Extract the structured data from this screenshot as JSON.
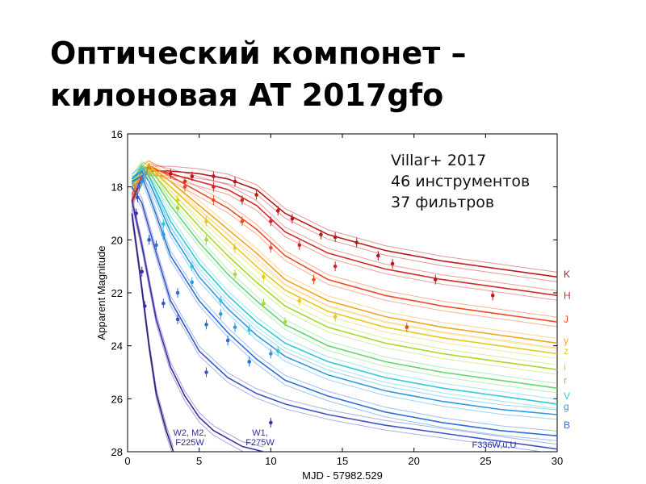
{
  "slide": {
    "title_line1": "Оптический компонет –",
    "title_line2": "килоновая AT 2017gfo"
  },
  "chart_data": {
    "type": "line",
    "xlabel": "MJD - 57982.529",
    "ylabel": "Apparent Magnitude",
    "xlim": [
      0,
      30
    ],
    "ylim": [
      28,
      16
    ],
    "y_inverted": true,
    "xticks": [
      0,
      5,
      10,
      15,
      20,
      25,
      30
    ],
    "yticks": [
      16,
      18,
      20,
      22,
      24,
      26,
      28
    ],
    "grid": false,
    "annotation_lines": [
      "Villar+ 2017",
      "46 инструментов",
      "37 фильтров"
    ],
    "inline_labels": [
      "W2, M2,\nF225W",
      "W1,\nF275W",
      "F336W,u,U"
    ],
    "series": [
      {
        "name": "K",
        "color": "#b81a1a",
        "x": [
          0.3,
          1,
          1.5,
          3,
          5,
          7,
          9,
          11,
          14,
          18,
          22,
          26,
          30
        ],
        "values": [
          18.6,
          17.7,
          17.4,
          17.4,
          17.5,
          17.7,
          18.1,
          19.0,
          19.8,
          20.4,
          20.8,
          21.1,
          21.4
        ]
      },
      {
        "name": "H",
        "color": "#d42727",
        "x": [
          0.3,
          1,
          1.5,
          3,
          5,
          7,
          9,
          11,
          14,
          18,
          22,
          26,
          30
        ],
        "values": [
          18.5,
          17.6,
          17.3,
          17.5,
          17.8,
          18.1,
          18.7,
          19.7,
          20.5,
          21.1,
          21.5,
          21.8,
          22.1
        ]
      },
      {
        "name": "J",
        "color": "#f04a22",
        "x": [
          0.3,
          1,
          1.5,
          3,
          5,
          7,
          9,
          11,
          14,
          18,
          22,
          26,
          30
        ],
        "values": [
          18.3,
          17.4,
          17.2,
          17.6,
          18.2,
          18.8,
          19.6,
          20.6,
          21.5,
          22.1,
          22.5,
          22.8,
          23.1
        ]
      },
      {
        "name": "y",
        "color": "#f5a31c",
        "x": [
          0.3,
          1,
          1.5,
          3,
          5,
          7,
          9,
          11,
          14,
          18,
          22,
          26,
          30
        ],
        "values": [
          18.1,
          17.3,
          17.2,
          17.8,
          18.7,
          19.6,
          20.5,
          21.5,
          22.3,
          22.9,
          23.3,
          23.6,
          23.9
        ]
      },
      {
        "name": "z",
        "color": "#e8c81a",
        "x": [
          0.3,
          1,
          1.5,
          3,
          5,
          7,
          9,
          11,
          14,
          18,
          22,
          26,
          30
        ],
        "values": [
          18.0,
          17.3,
          17.2,
          18.0,
          19.0,
          20.0,
          21.0,
          21.9,
          22.7,
          23.3,
          23.7,
          24.0,
          24.3
        ]
      },
      {
        "name": "i",
        "color": "#a8d829",
        "x": [
          0.3,
          1,
          1.5,
          3,
          5,
          7,
          9,
          11,
          14,
          18,
          22,
          26,
          30
        ],
        "values": [
          17.9,
          17.3,
          17.3,
          18.3,
          19.5,
          20.6,
          21.6,
          22.5,
          23.3,
          23.9,
          24.3,
          24.6,
          24.9
        ]
      },
      {
        "name": "r",
        "color": "#5fd870",
        "x": [
          0.3,
          1,
          1.5,
          3,
          5,
          7,
          9,
          11,
          14,
          18,
          22,
          26,
          30
        ],
        "values": [
          17.8,
          17.2,
          17.4,
          18.7,
          20.1,
          21.3,
          22.3,
          23.2,
          24.0,
          24.6,
          25.0,
          25.3,
          25.6
        ]
      },
      {
        "name": "V",
        "color": "#2fc8d8",
        "x": [
          0.3,
          1,
          1.5,
          3,
          5,
          7,
          9,
          11,
          14,
          18,
          22,
          26,
          30
        ],
        "values": [
          17.7,
          17.3,
          17.6,
          19.3,
          20.9,
          22.1,
          23.1,
          23.9,
          24.6,
          25.2,
          25.6,
          25.9,
          26.2
        ]
      },
      {
        "name": "g",
        "color": "#2a9be0",
        "x": [
          0.3,
          1,
          1.5,
          3,
          5,
          7,
          9,
          11,
          14,
          18,
          22,
          26,
          30
        ],
        "values": [
          17.7,
          17.4,
          17.8,
          19.7,
          21.4,
          22.6,
          23.6,
          24.4,
          25.1,
          25.7,
          26.1,
          26.4,
          26.6
        ]
      },
      {
        "name": "B",
        "color": "#2a6fd6",
        "x": [
          0.3,
          1,
          1.5,
          3,
          5,
          7,
          9,
          11,
          14,
          18,
          22,
          26,
          30
        ],
        "values": [
          17.8,
          17.6,
          18.3,
          20.6,
          22.3,
          23.5,
          24.5,
          25.3,
          25.9,
          26.5,
          26.9,
          27.2,
          27.4
        ]
      },
      {
        "name": "F336W,u,U",
        "color": "#3a55c8",
        "x": [
          0.3,
          1,
          2,
          3,
          5,
          7,
          9,
          11,
          14,
          18,
          22,
          26,
          30
        ],
        "values": [
          18.0,
          18.6,
          20.5,
          22.3,
          24.2,
          25.2,
          25.8,
          26.2,
          26.6,
          27.0,
          27.3,
          27.6,
          27.9
        ]
      },
      {
        "name": "W1, F275W",
        "color": "#3a2fa8",
        "x": [
          0.3,
          1,
          2,
          3,
          4,
          5,
          6,
          7,
          8,
          9.5
        ],
        "values": [
          18.5,
          20.2,
          23.0,
          24.8,
          25.9,
          26.7,
          27.2,
          27.5,
          27.8,
          28.0
        ]
      },
      {
        "name": "W2, M2, F225W",
        "color": "#2a1f80",
        "x": [
          0.3,
          0.8,
          1.5,
          2,
          2.7,
          3.2
        ],
        "values": [
          19.0,
          21.0,
          24.0,
          25.8,
          27.2,
          28.0
        ]
      }
    ],
    "observations": [
      {
        "band": "K",
        "points": [
          [
            1.5,
            17.4
          ],
          [
            3,
            17.5
          ],
          [
            4.5,
            17.6
          ],
          [
            6,
            17.6
          ],
          [
            7.5,
            17.8
          ],
          [
            9,
            18.3
          ],
          [
            10.5,
            18.9
          ],
          [
            11.5,
            19.2
          ],
          [
            13.5,
            19.8
          ],
          [
            14.5,
            19.9
          ],
          [
            16,
            20.1
          ],
          [
            17.5,
            20.6
          ],
          [
            18.5,
            20.9
          ],
          [
            21.5,
            21.5
          ],
          [
            25.5,
            22.1
          ]
        ]
      },
      {
        "name": "H",
        "band": "H",
        "points": [
          [
            1.5,
            17.5
          ],
          [
            4,
            17.8
          ],
          [
            6,
            18.0
          ],
          [
            8,
            18.5
          ],
          [
            10,
            19.3
          ],
          [
            12,
            20.2
          ],
          [
            14.5,
            21.0
          ]
        ]
      },
      {
        "band": "J",
        "points": [
          [
            1.5,
            17.3
          ],
          [
            4,
            18.0
          ],
          [
            6,
            18.5
          ],
          [
            8,
            19.3
          ],
          [
            10,
            20.3
          ],
          [
            13,
            21.5
          ],
          [
            19.5,
            23.3
          ]
        ]
      },
      {
        "band": "z",
        "points": [
          [
            1.5,
            17.4
          ],
          [
            3.5,
            18.5
          ],
          [
            5.5,
            19.3
          ],
          [
            7.5,
            20.3
          ],
          [
            9.5,
            21.4
          ],
          [
            12,
            22.3
          ],
          [
            14.5,
            22.9
          ]
        ]
      },
      {
        "band": "i",
        "points": [
          [
            1.5,
            17.5
          ],
          [
            3.5,
            18.8
          ],
          [
            5.5,
            20.0
          ],
          [
            7.5,
            21.3
          ],
          [
            9.5,
            22.4
          ],
          [
            11,
            23.1
          ]
        ]
      },
      {
        "band": "V",
        "points": [
          [
            1.2,
            17.6
          ],
          [
            2.5,
            19.4
          ],
          [
            4.5,
            21.0
          ],
          [
            6.5,
            22.3
          ],
          [
            8.5,
            23.4
          ],
          [
            10.5,
            24.2
          ]
        ]
      },
      {
        "band": "g",
        "points": [
          [
            1.0,
            17.8
          ],
          [
            2.5,
            19.8
          ],
          [
            4.5,
            21.6
          ],
          [
            6.5,
            22.8
          ],
          [
            7.5,
            23.3
          ],
          [
            10,
            24.3
          ]
        ]
      },
      {
        "band": "B",
        "points": [
          [
            0.8,
            18.0
          ],
          [
            2.0,
            20.2
          ],
          [
            3.5,
            22.0
          ],
          [
            5.5,
            23.2
          ],
          [
            7.0,
            23.8
          ],
          [
            8.5,
            24.6
          ]
        ]
      },
      {
        "band": "F336W,u,U",
        "points": [
          [
            0.7,
            18.4
          ],
          [
            1.5,
            20.0
          ],
          [
            2.5,
            22.4
          ],
          [
            3.5,
            23.0
          ],
          [
            5.5,
            25.0
          ]
        ]
      },
      {
        "band": "W1, F275W",
        "points": [
          [
            0.6,
            19.0
          ],
          [
            1.0,
            21.2
          ],
          [
            1.2,
            22.5
          ],
          [
            10,
            26.9
          ]
        ]
      }
    ]
  }
}
